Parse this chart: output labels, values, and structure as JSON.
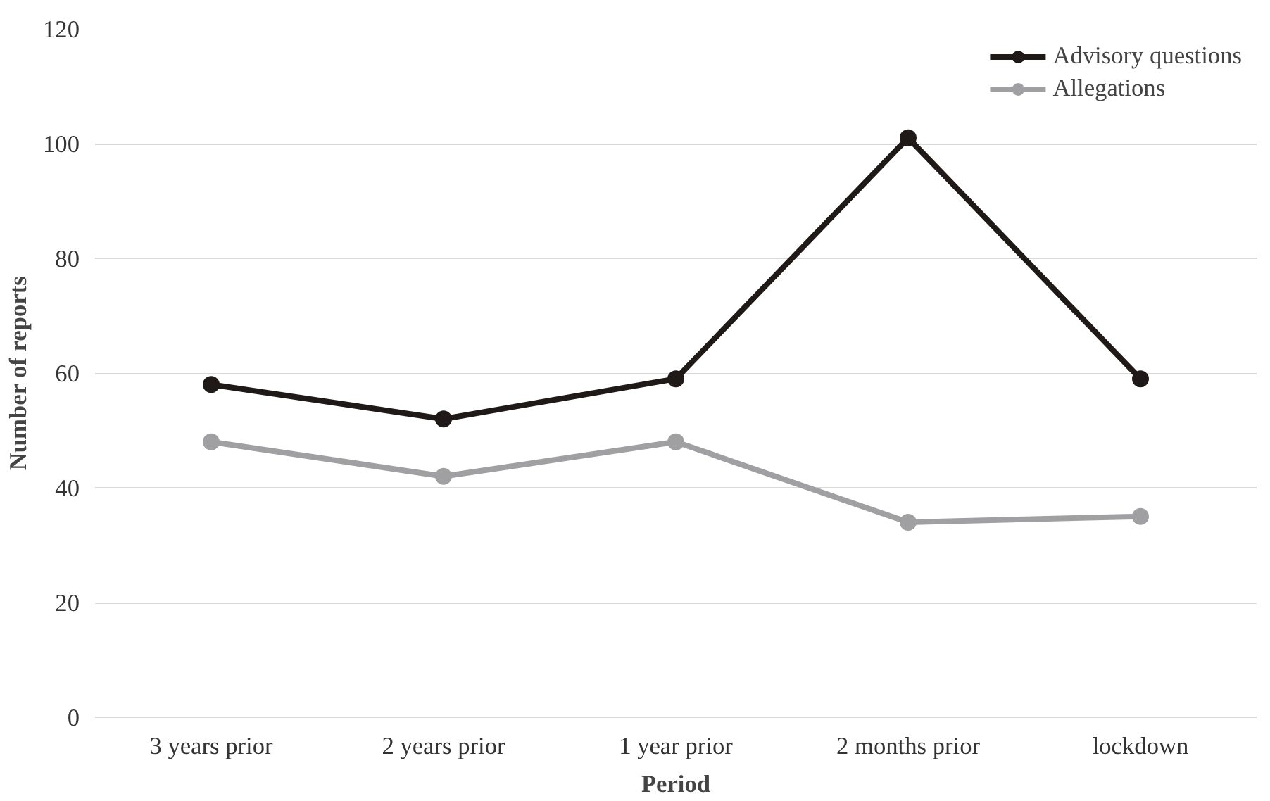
{
  "chart_data": {
    "type": "line",
    "xlabel": "Period",
    "ylabel": "Number of reports",
    "categories": [
      "3 years prior",
      "2 years prior",
      "1 year prior",
      "2 months prior",
      "lockdown"
    ],
    "series": [
      {
        "name": "Advisory questions",
        "color": "#1f1a17",
        "values": [
          58,
          52,
          59,
          101,
          59
        ]
      },
      {
        "name": "Allegations",
        "color": "#a0a0a2",
        "values": [
          48,
          42,
          48,
          34,
          35
        ]
      }
    ],
    "ylim": [
      0,
      120
    ],
    "yticks": [
      0,
      20,
      40,
      60,
      80,
      100,
      120
    ],
    "grid": "y",
    "legend": "top right",
    "marker": "circle",
    "line_style": "solid"
  }
}
